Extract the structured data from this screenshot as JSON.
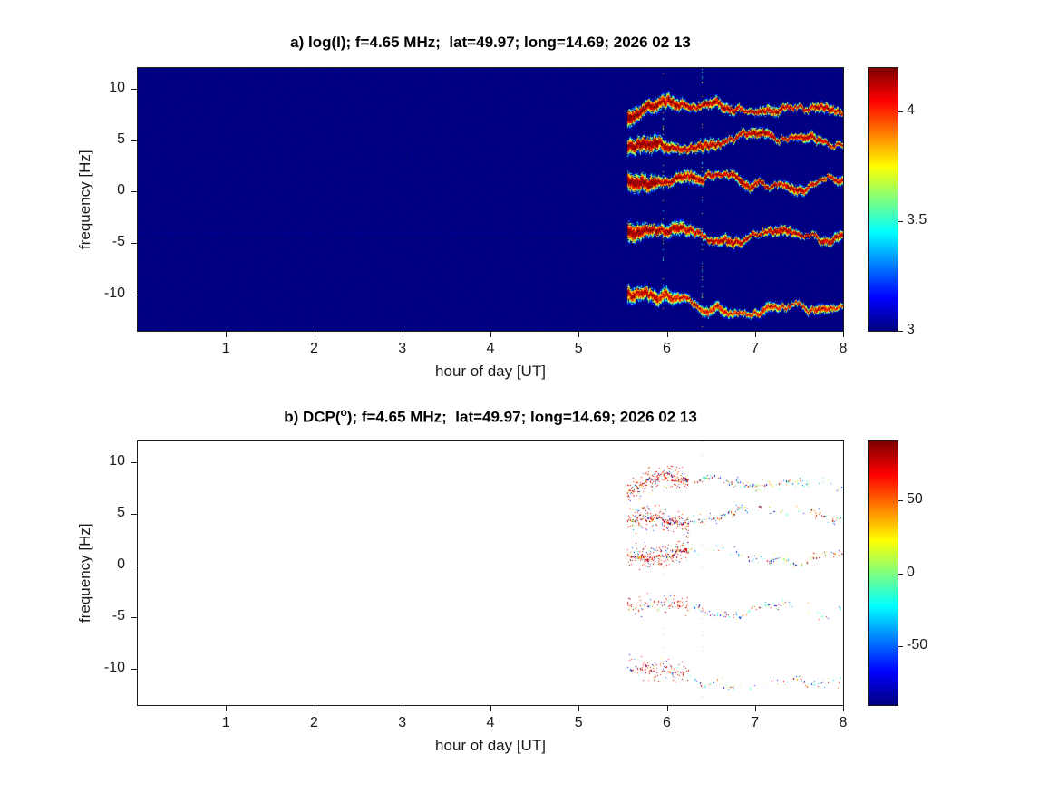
{
  "figure": {
    "background_color": "#ffffff",
    "axis_color": "#1a1a1a"
  },
  "chart_data": [
    {
      "type": "heatmap",
      "panel_label": "a",
      "title": "a) log(I); f=4.65 MHz;  lat=49.97; long=14.69; 2026 02 13",
      "xlabel": "hour of day [UT]",
      "ylabel": "frequency [Hz]",
      "xlim": [
        0,
        8
      ],
      "ylim": [
        -13.5,
        12
      ],
      "x_ticks": [
        1,
        2,
        3,
        4,
        5,
        6,
        7,
        8
      ],
      "y_ticks": [
        -10,
        -5,
        0,
        5,
        10
      ],
      "grid": false,
      "colormap": "jet",
      "background_value": 3.0,
      "colorbar": {
        "vmin": 3.0,
        "vmax": 4.2,
        "ticks": [
          3,
          3.5,
          4
        ],
        "tick_labels": [
          "3",
          "3.5",
          "4"
        ]
      },
      "signal_onset_hour": 5.55,
      "signal_end_hour": 8.0,
      "signal_traces": [
        {
          "name": "doppler-line-1",
          "y_start_hz": 8.3,
          "y_end_hz": 7.3,
          "peak_log_intensity": 4.2
        },
        {
          "name": "doppler-line-2",
          "y_start_hz": 5.2,
          "y_end_hz": 4.4,
          "peak_log_intensity": 4.2
        },
        {
          "name": "doppler-line-3",
          "y_start_hz": 1.5,
          "y_end_hz": 0.7,
          "peak_log_intensity": 4.2
        },
        {
          "name": "doppler-line-4",
          "y_start_hz": -3.5,
          "y_end_hz": -4.3,
          "peak_log_intensity": 4.2
        },
        {
          "name": "doppler-line-5",
          "y_start_hz": -10.2,
          "y_end_hz": -11.3,
          "peak_log_intensity": 4.1
        }
      ],
      "artifact_vertical_dotted_lines_hours": [
        5.95,
        6.4
      ],
      "faint_horizontal_line_hz": -4
    },
    {
      "type": "heatmap",
      "panel_label": "b",
      "title": "b) DCP(°); f=4.65 MHz;  lat=49.97; long=14.69; 2026 02 13",
      "title_parts": {
        "prefix": "b) DCP(",
        "sup": "o",
        "suffix": "); f=4.65 MHz;  lat=49.97; long=14.69; 2026 02 13"
      },
      "xlabel": "hour of day [UT]",
      "ylabel": "frequency [Hz]",
      "xlim": [
        0,
        8
      ],
      "ylim": [
        -13.5,
        12
      ],
      "x_ticks": [
        1,
        2,
        3,
        4,
        5,
        6,
        7,
        8
      ],
      "y_ticks": [
        -10,
        -5,
        0,
        5,
        10
      ],
      "grid": false,
      "colormap": "jet",
      "background": "white",
      "colorbar": {
        "vmin": -90,
        "vmax": 90,
        "ticks": [
          -50,
          0,
          50
        ],
        "tick_labels": [
          "-50",
          "0",
          "50"
        ]
      },
      "signal_onset_hour": 5.55,
      "signal_end_hour": 8.0,
      "signal_traces": [
        {
          "name": "doppler-line-1",
          "y_start_hz": 8.3,
          "y_end_hz": 7.3
        },
        {
          "name": "doppler-line-2",
          "y_start_hz": 5.2,
          "y_end_hz": 4.4
        },
        {
          "name": "doppler-line-3",
          "y_start_hz": 1.5,
          "y_end_hz": 0.7
        },
        {
          "name": "doppler-line-4",
          "y_start_hz": -3.5,
          "y_end_hz": -4.3
        },
        {
          "name": "doppler-line-5",
          "y_start_hz": -10.2,
          "y_end_hz": -11.3
        }
      ],
      "artifact_vertical_dotted_lines_hours": [
        5.95,
        6.4
      ]
    }
  ]
}
